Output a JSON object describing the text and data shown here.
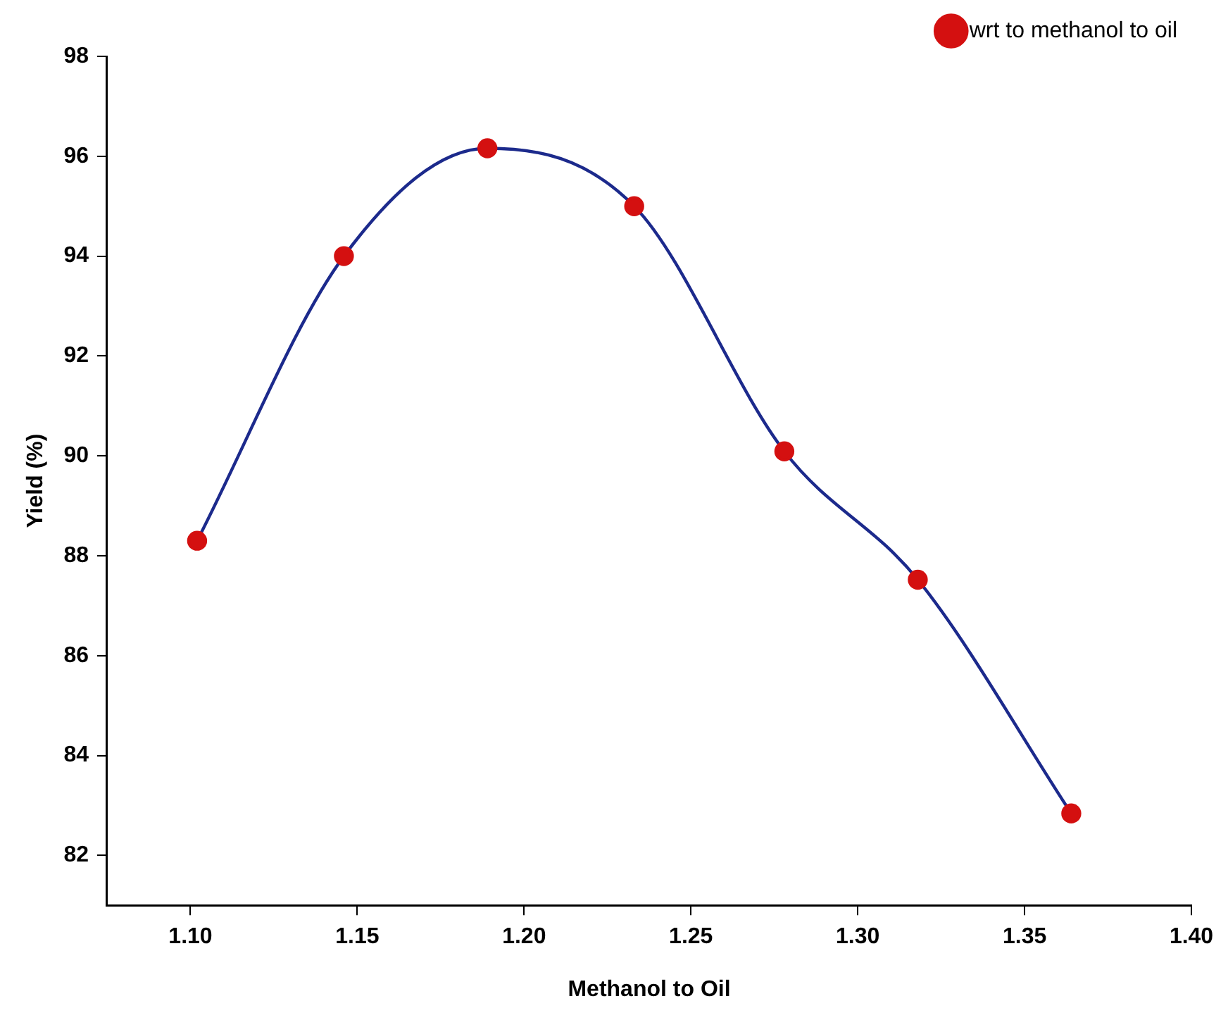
{
  "chart_data": {
    "type": "line",
    "xlabel": "Methanol to Oil",
    "ylabel": "Yield (%)",
    "x": [
      1.102,
      1.146,
      1.189,
      1.233,
      1.278,
      1.318,
      1.364
    ],
    "series": [
      {
        "name": "wrt to methanol to oil",
        "color": "#1c2a8c",
        "colors": [
          "#d41010",
          "#d41010",
          "#d41010",
          "#d41010",
          "#d41010",
          "#d41010",
          "#d41010"
        ],
        "values": [
          88.3,
          94.0,
          96.16,
          95.0,
          90.09,
          87.52,
          82.84
        ]
      }
    ],
    "xlim": [
      1.075,
      1.4
    ],
    "xticks": [
      {
        "value": 1.1,
        "label": "1.10"
      },
      {
        "value": 1.15,
        "label": "1.15"
      },
      {
        "value": 1.2,
        "label": "1.20"
      },
      {
        "value": 1.25,
        "label": "1.25"
      },
      {
        "value": 1.3,
        "label": "1.30"
      },
      {
        "value": 1.35,
        "label": "1.35"
      },
      {
        "value": 1.4,
        "label": "1.40"
      }
    ],
    "ylim": [
      81,
      98
    ],
    "yticks": [
      82,
      84,
      86,
      88,
      90,
      92,
      94,
      96,
      98
    ],
    "grid": false,
    "legend": "top right",
    "marker": "circle",
    "line_style": "solid"
  }
}
